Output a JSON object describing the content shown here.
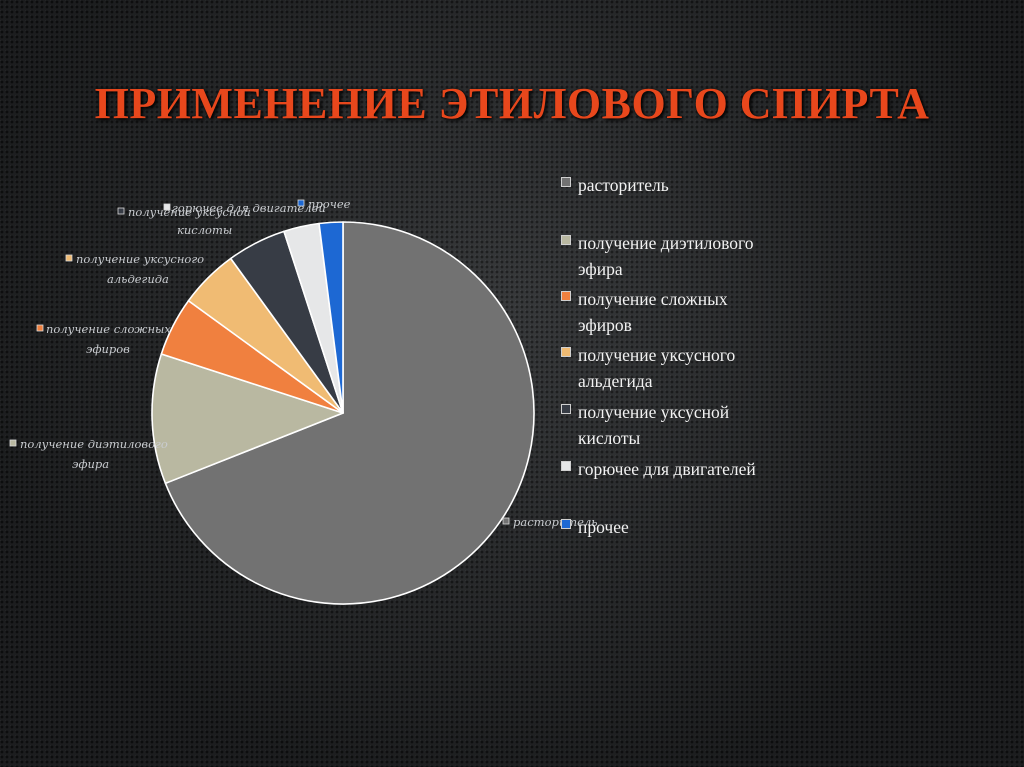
{
  "slide": {
    "title": "ПРИМЕНЕНИЕ ЭТИЛОВОГО СПИРТА"
  },
  "chart_data": {
    "type": "pie",
    "title": "ПРИМЕНЕНИЕ ЭТИЛОВОГО СПИРТА",
    "categories": [
      "расторитель",
      "получение диэтилового эфира",
      "получение сложных эфиров",
      "получение уксусного альдегида",
      "получение уксусной кислоты",
      "горючее для двигателей",
      "прочее"
    ],
    "values": [
      69,
      11,
      5,
      5,
      5,
      3,
      2
    ],
    "colors": [
      "#727272",
      "#b9b8a1",
      "#f0803f",
      "#f0bb73",
      "#373c45",
      "#e6e7e8",
      "#1d68d3"
    ],
    "legend_placement": "right",
    "data_labels": "category name callouts"
  }
}
